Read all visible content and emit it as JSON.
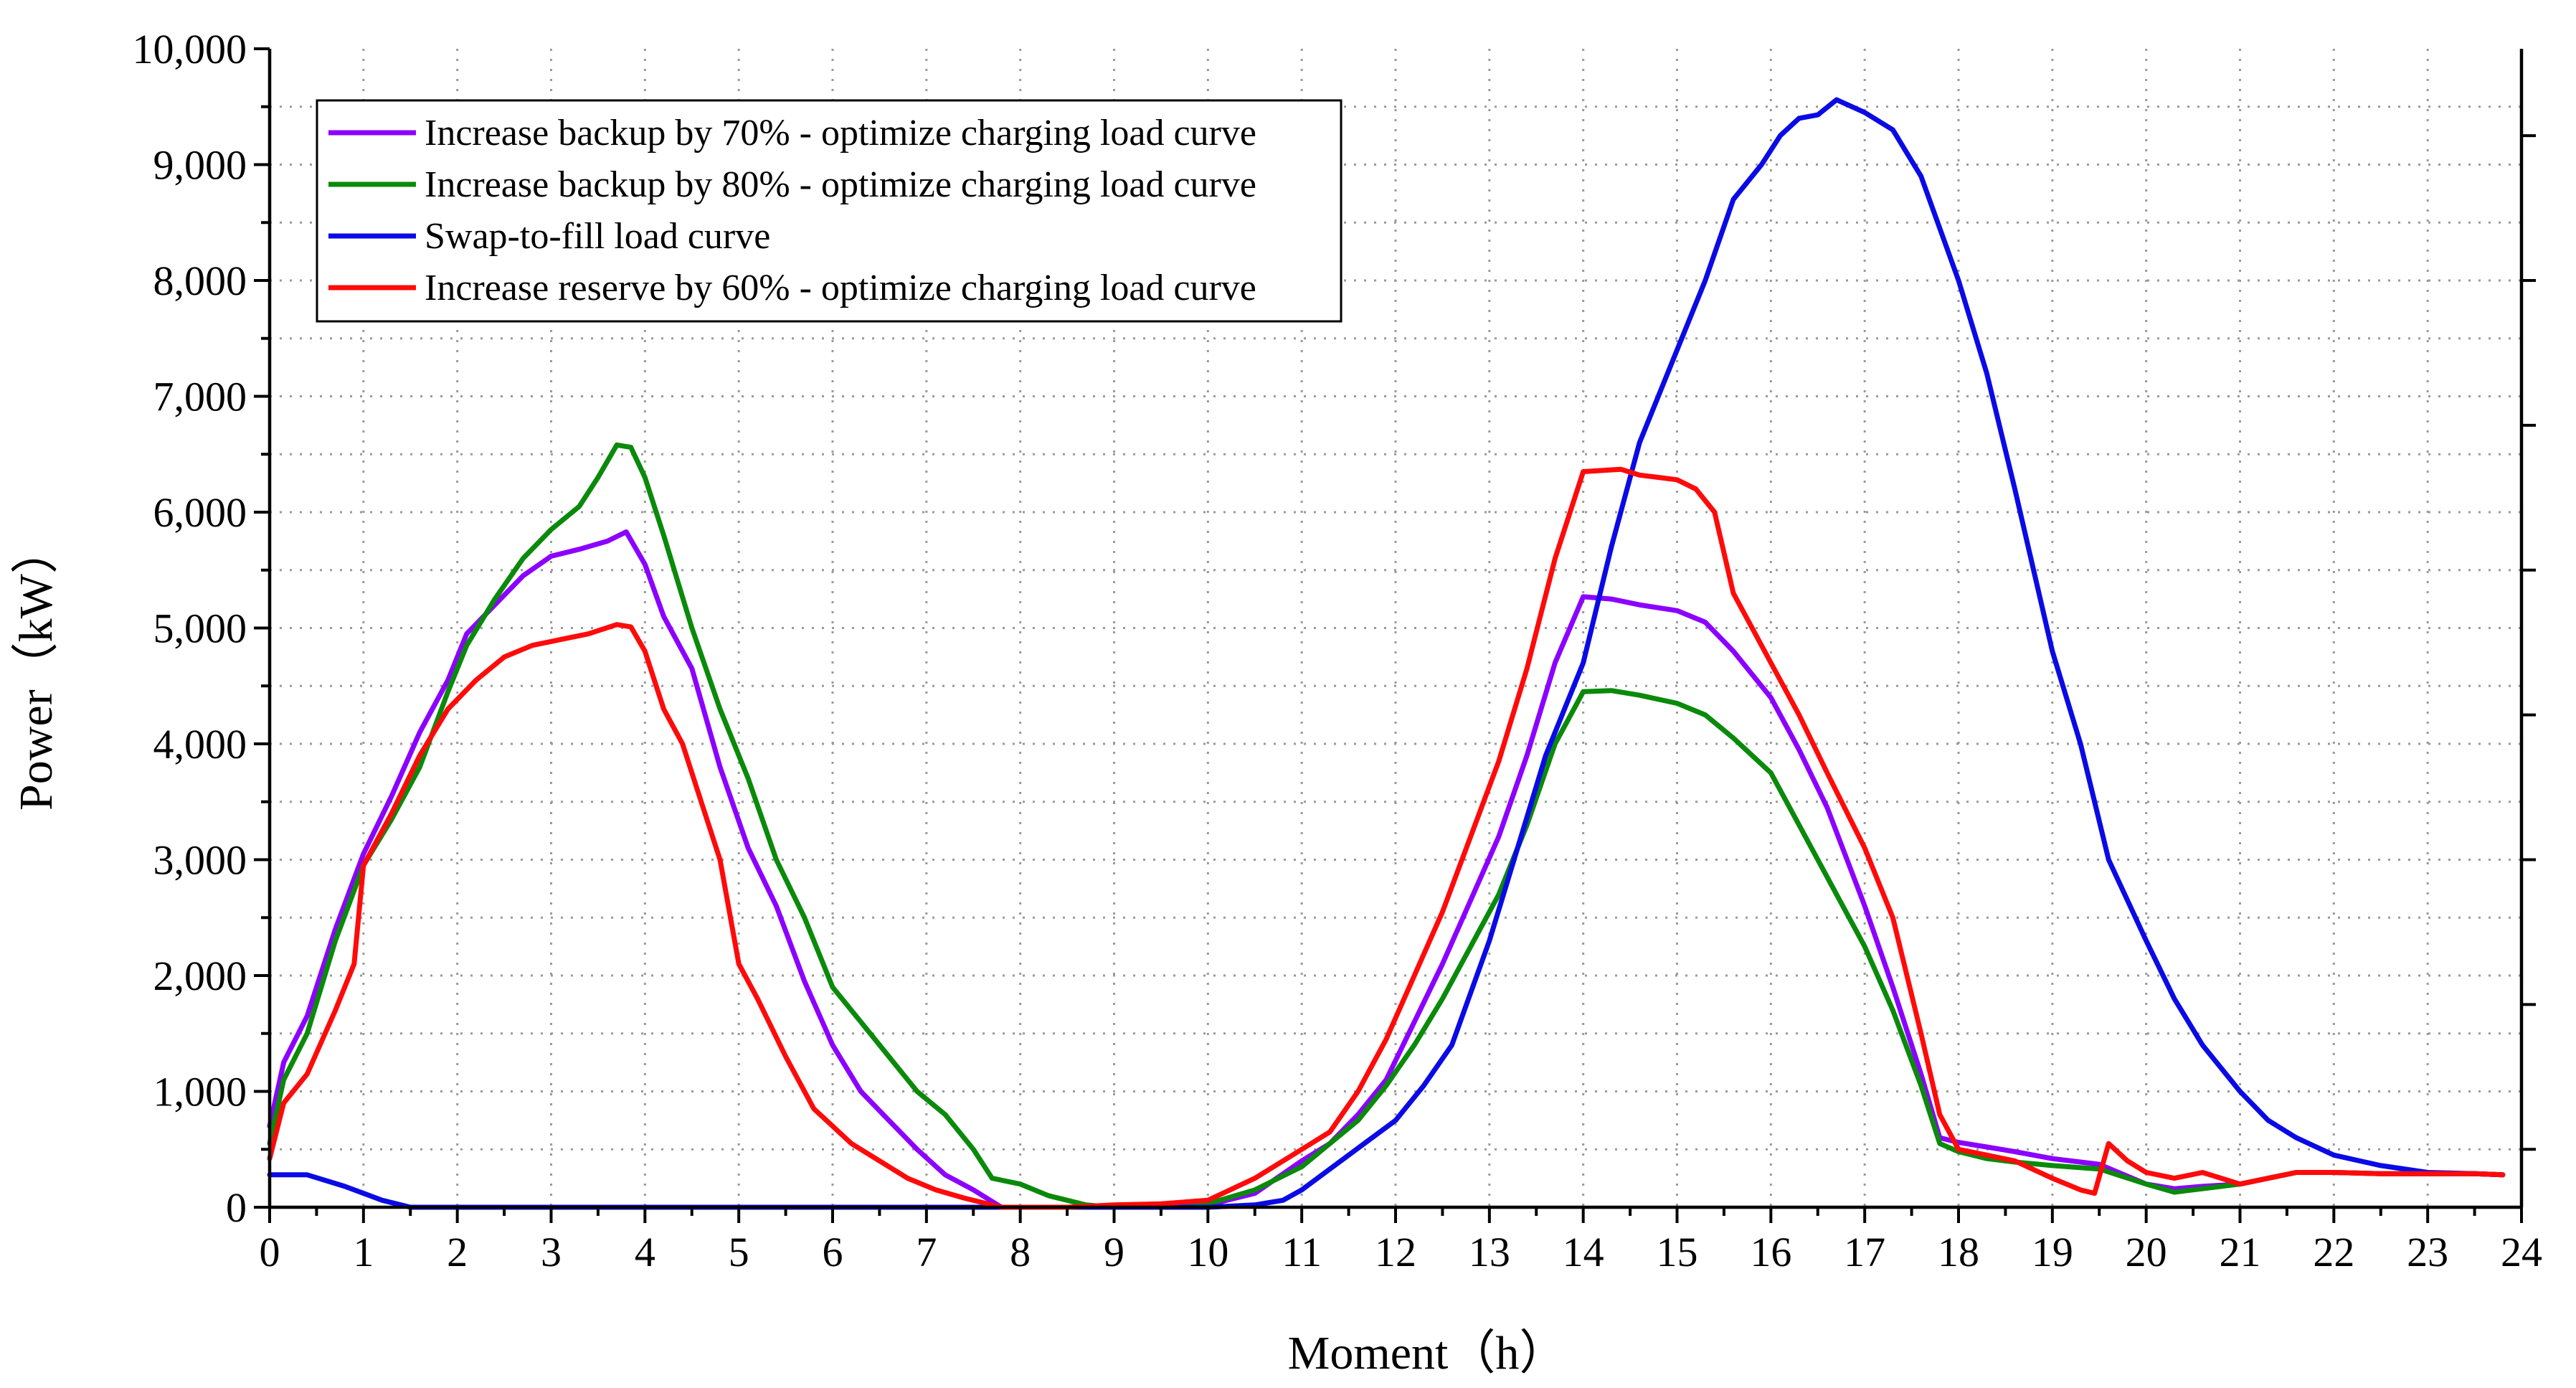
{
  "chart_data": {
    "type": "line",
    "title": "",
    "xlabel": "Moment（h）",
    "ylabel": "Power（kW）",
    "xlim": [
      0,
      24
    ],
    "ylim": [
      0,
      10000
    ],
    "xticks": [
      0,
      1,
      2,
      3,
      4,
      5,
      6,
      7,
      8,
      9,
      10,
      11,
      12,
      13,
      14,
      15,
      16,
      17,
      18,
      19,
      20,
      21,
      22,
      23,
      24
    ],
    "xtick_labels": [
      "0",
      "1",
      "2",
      "3",
      "4",
      "5",
      "6",
      "7",
      "8",
      "9",
      "10",
      "11",
      "12",
      "13",
      "14",
      "15",
      "16",
      "17",
      "18",
      "19",
      "20",
      "21",
      "22",
      "23",
      "24"
    ],
    "yticks": [
      0,
      1000,
      2000,
      3000,
      4000,
      5000,
      6000,
      7000,
      8000,
      9000,
      10000
    ],
    "ytick_labels": [
      "0",
      "1,000",
      "2,000",
      "3,000",
      "4,000",
      "5,000",
      "6,000",
      "7,000",
      "8,000",
      "9,000",
      "10,000"
    ],
    "grid": true,
    "legend_position": "top-left",
    "series": [
      {
        "name": "Increase backup by 70% - optimize charging load curve",
        "color": "#8B00FF",
        "x": [
          0,
          0.15,
          0.4,
          0.7,
          1,
          1.3,
          1.6,
          1.9,
          2.1,
          2.4,
          2.7,
          3,
          3.3,
          3.6,
          3.8,
          4,
          4.2,
          4.5,
          4.8,
          5.1,
          5.4,
          5.7,
          6,
          6.3,
          6.6,
          6.9,
          7.2,
          7.5,
          7.8,
          8.5,
          9,
          9.5,
          10,
          10.5,
          11,
          11.3,
          11.6,
          11.9,
          12.2,
          12.5,
          12.8,
          13.1,
          13.4,
          13.7,
          14,
          14.3,
          14.6,
          15,
          15.3,
          15.6,
          16,
          16.3,
          16.6,
          17,
          17.3,
          17.6,
          17.8,
          18,
          18.3,
          18.6,
          19,
          19.5,
          20,
          20.3,
          20.6,
          21,
          21.3,
          21.6,
          22,
          22.5,
          23,
          23.5,
          23.8
        ],
        "values": [
          700,
          1250,
          1650,
          2400,
          3050,
          3550,
          4100,
          4550,
          4950,
          5200,
          5450,
          5620,
          5680,
          5750,
          5830,
          5550,
          5100,
          4650,
          3800,
          3100,
          2600,
          1950,
          1400,
          1000,
          750,
          500,
          280,
          150,
          0,
          0,
          0,
          0,
          20,
          120,
          400,
          550,
          800,
          1100,
          1600,
          2100,
          2650,
          3200,
          3900,
          4700,
          5270,
          5250,
          5200,
          5150,
          5050,
          4800,
          4400,
          3950,
          3450,
          2600,
          1900,
          1150,
          600,
          560,
          520,
          480,
          420,
          370,
          200,
          160,
          180,
          200,
          250,
          300,
          300,
          290,
          290,
          290,
          280
        ]
      },
      {
        "name": "Increase backup by 80% - optimize charging load curve",
        "color": "#0A8A0A",
        "x": [
          0,
          0.15,
          0.4,
          0.7,
          1,
          1.3,
          1.6,
          1.9,
          2.1,
          2.4,
          2.7,
          3,
          3.3,
          3.5,
          3.7,
          3.85,
          4,
          4.2,
          4.5,
          4.8,
          5.1,
          5.4,
          5.7,
          6,
          6.3,
          6.6,
          6.9,
          7.2,
          7.5,
          7.7,
          8,
          8.3,
          8.7,
          9,
          9.5,
          10,
          10.5,
          11,
          11.3,
          11.6,
          11.9,
          12.2,
          12.5,
          12.8,
          13.1,
          13.4,
          13.7,
          14,
          14.3,
          14.6,
          15,
          15.3,
          15.6,
          16,
          16.3,
          16.6,
          17,
          17.3,
          17.6,
          17.8,
          18,
          18.3,
          18.6,
          19,
          19.5,
          20,
          20.3,
          20.6,
          21,
          21.3,
          21.6,
          22,
          22.5,
          23,
          23.5,
          23.8
        ],
        "values": [
          550,
          1100,
          1500,
          2300,
          2950,
          3350,
          3800,
          4450,
          4850,
          5250,
          5600,
          5850,
          6050,
          6300,
          6580,
          6560,
          6300,
          5800,
          5000,
          4300,
          3700,
          3000,
          2500,
          1900,
          1600,
          1300,
          1000,
          800,
          500,
          250,
          200,
          100,
          20,
          0,
          0,
          30,
          150,
          350,
          550,
          750,
          1050,
          1400,
          1800,
          2250,
          2700,
          3300,
          4000,
          4450,
          4460,
          4420,
          4350,
          4250,
          4050,
          3750,
          3300,
          2850,
          2250,
          1700,
          1050,
          550,
          480,
          420,
          390,
          360,
          330,
          200,
          130,
          160,
          200,
          250,
          300,
          300,
          290,
          290,
          290,
          280
        ]
      },
      {
        "name": "Swap-to-fill load curve",
        "color": "#0A0AE6",
        "x": [
          0,
          0.4,
          0.8,
          1.2,
          1.5,
          2,
          3,
          4,
          5,
          6,
          7,
          8,
          9,
          9.5,
          10,
          10.5,
          10.8,
          11,
          11.5,
          12,
          12.3,
          12.6,
          13,
          13.3,
          13.6,
          14,
          14.3,
          14.6,
          15,
          15.3,
          15.6,
          15.9,
          16.1,
          16.3,
          16.5,
          16.7,
          17,
          17.3,
          17.6,
          18,
          18.3,
          18.6,
          19,
          19.3,
          19.6,
          20,
          20.3,
          20.6,
          21,
          21.3,
          21.6,
          22,
          22.5,
          23,
          23.5,
          23.8
        ],
        "values": [
          280,
          280,
          180,
          60,
          0,
          0,
          0,
          0,
          0,
          0,
          0,
          0,
          0,
          0,
          0,
          20,
          60,
          150,
          450,
          750,
          1050,
          1400,
          2300,
          3100,
          3900,
          4700,
          5700,
          6600,
          7400,
          8000,
          8700,
          9000,
          9250,
          9400,
          9430,
          9560,
          9450,
          9300,
          8900,
          8000,
          7200,
          6200,
          4800,
          4000,
          3000,
          2300,
          1800,
          1400,
          1000,
          750,
          600,
          450,
          360,
          300,
          290,
          280
        ]
      },
      {
        "name": "Increase reserve by 60% - optimize charging load curve",
        "color": "#FF0A0A",
        "x": [
          0,
          0.15,
          0.4,
          0.7,
          0.9,
          1,
          1.3,
          1.6,
          1.9,
          2.2,
          2.5,
          2.8,
          3.1,
          3.4,
          3.7,
          3.85,
          4,
          4.2,
          4.4,
          4.6,
          4.8,
          5,
          5.2,
          5.5,
          5.8,
          6.2,
          6.5,
          6.8,
          7.1,
          7.4,
          7.8,
          8.5,
          9,
          9.5,
          10,
          10.5,
          11,
          11.3,
          11.6,
          11.9,
          12.2,
          12.5,
          12.8,
          13.1,
          13.4,
          13.7,
          14,
          14.2,
          14.4,
          14.6,
          14.8,
          15,
          15.2,
          15.4,
          15.6,
          15.8,
          16,
          16.3,
          16.6,
          17,
          17.3,
          17.6,
          17.8,
          18,
          18.3,
          18.6,
          19,
          19.3,
          19.45,
          19.6,
          19.8,
          20,
          20.3,
          20.6,
          21,
          21.3,
          21.6,
          22,
          22.5,
          23,
          23.5,
          23.8
        ],
        "values": [
          420,
          900,
          1150,
          1700,
          2100,
          2950,
          3400,
          3900,
          4300,
          4550,
          4750,
          4850,
          4900,
          4950,
          5030,
          5010,
          4800,
          4300,
          4000,
          3500,
          3000,
          2100,
          1800,
          1300,
          850,
          550,
          400,
          250,
          150,
          80,
          0,
          0,
          20,
          30,
          60,
          250,
          500,
          650,
          1000,
          1450,
          2000,
          2550,
          3200,
          3850,
          4650,
          5600,
          6350,
          6360,
          6370,
          6320,
          6300,
          6280,
          6200,
          6000,
          5300,
          5000,
          4700,
          4250,
          3750,
          3100,
          2500,
          1500,
          800,
          500,
          450,
          400,
          250,
          150,
          120,
          550,
          400,
          300,
          250,
          300,
          200,
          250,
          300,
          300,
          290,
          290,
          290,
          280
        ]
      }
    ]
  }
}
